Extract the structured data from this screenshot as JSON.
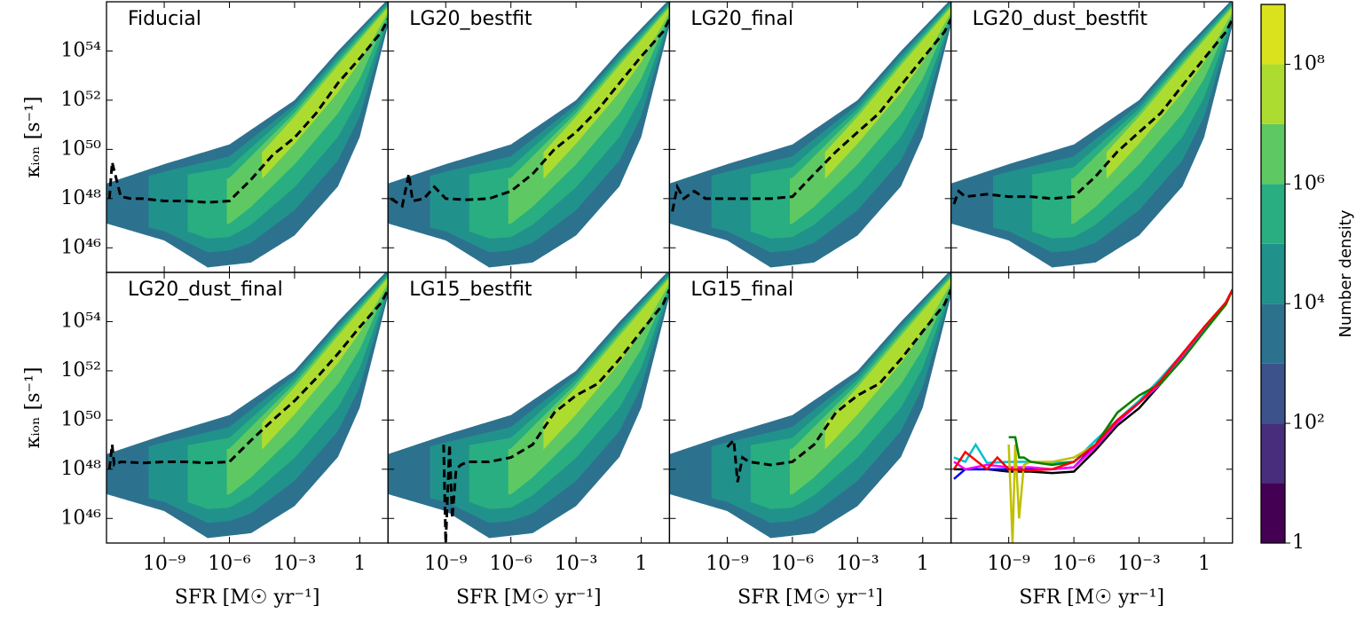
{
  "chart_data": {
    "type": "line",
    "xscale": "log",
    "yscale": "log",
    "xlim": [
      2.2e-12,
      20
    ],
    "ylim": [
      1e+45,
      1e+56
    ],
    "xticks": [
      {
        "value": 1e-09,
        "label": "10⁻⁹"
      },
      {
        "value": 1e-06,
        "label": "10⁻⁶"
      },
      {
        "value": 0.001,
        "label": "10⁻³"
      },
      1
    ],
    "yticks": [
      {
        "value": 1e+46,
        "label": "10⁴⁶"
      },
      {
        "value": 1e+48,
        "label": "10⁴⁸"
      },
      {
        "value": 1e+50,
        "label": "10⁵⁰"
      },
      {
        "value": 1e+52,
        "label": "10⁵²"
      },
      {
        "value": 1e+54,
        "label": "10⁵⁴"
      }
    ],
    "xlabel": "SFR [M☉ yr⁻¹]",
    "ylabel": "κᵢₒₙ [s⁻¹]",
    "panels": [
      {
        "title": "Fiducial",
        "density": true,
        "series": [
          {
            "color": "#000000",
            "dash": true,
            "x": [
              3e-12,
              4e-12,
              1e-11,
              3e-11,
              1e-10,
              1e-09,
              1e-08,
              1e-07,
              1e-06,
              1e-05,
              0.0001,
              0.001,
              0.01,
              0.1,
              1,
              10,
              20
            ],
            "values": [
              1e+48,
              3e+49,
              1.2e+48,
              1e+48,
              1e+48,
              8e+47,
              8e+47,
              7e+47,
              8e+47,
              6e+48,
              6e+49,
              3e+50,
              3e+51,
              5e+52,
              5e+53,
              6e+54,
              2e+55
            ]
          }
        ]
      },
      {
        "title": "LG20_bestfit",
        "density": true,
        "series": [
          {
            "color": "#000000",
            "dash": true,
            "x": [
              3e-12,
              1e-11,
              2e-11,
              3e-11,
              1e-10,
              3e-10,
              1e-09,
              1e-08,
              1e-07,
              1e-06,
              1e-05,
              0.0001,
              0.001,
              0.01,
              0.1,
              1,
              10,
              20
            ],
            "values": [
              1e+48,
              5e+47,
              1e+49,
              8e+47,
              1e+48,
              3e+48,
              1e+48,
              9e+47,
              1e+48,
              2e+48,
              1e+49,
              1e+50,
              5e+50,
              4e+51,
              5e+52,
              6e+53,
              6e+54,
              2e+55
            ]
          }
        ]
      },
      {
        "title": "LG20_final",
        "density": true,
        "series": [
          {
            "color": "#000000",
            "dash": true,
            "x": [
              3e-12,
              5e-12,
              1e-11,
              3e-11,
              1e-10,
              1e-09,
              1e-08,
              1e-07,
              1e-06,
              1e-05,
              0.0001,
              0.001,
              0.01,
              0.1,
              1,
              10,
              20
            ],
            "values": [
              3e+47,
              3e+48,
              1e+48,
              2e+48,
              1e+48,
              1e+48,
              1e+48,
              1e+48,
              1.2e+48,
              1e+49,
              8e+49,
              5e+50,
              3e+51,
              4e+52,
              5e+53,
              6e+54,
              2e+55
            ]
          }
        ]
      },
      {
        "title": "LG20_dust_bestfit",
        "density": true,
        "series": [
          {
            "color": "#000000",
            "dash": true,
            "x": [
              3e-12,
              5e-12,
              1e-11,
              1e-10,
              1e-09,
              1e-08,
              1e-07,
              1e-06,
              1e-05,
              0.0001,
              0.001,
              0.01,
              0.1,
              1,
              10,
              20
            ],
            "values": [
              6e+47,
              2e+48,
              1.2e+48,
              1.5e+48,
              1.2e+48,
              1.2e+48,
              1e+48,
              1.2e+48,
              8e+48,
              8e+49,
              5e+50,
              3e+51,
              4e+52,
              5e+53,
              6e+54,
              2e+55
            ]
          }
        ]
      },
      {
        "title": "LG20_dust_final",
        "density": true,
        "series": [
          {
            "color": "#000000",
            "dash": true,
            "x": [
              3e-12,
              4e-12,
              5e-12,
              1e-11,
              1e-10,
              1e-09,
              1e-08,
              1e-07,
              1e-06,
              1e-05,
              0.0001,
              0.001,
              0.01,
              0.1,
              1,
              10,
              20
            ],
            "values": [
              1e+48,
              1e+49,
              1.5e+48,
              2e+48,
              1.8e+48,
              2e+48,
              2e+48,
              1.8e+48,
              2e+48,
              1.5e+49,
              1e+50,
              6e+50,
              5e+51,
              5e+52,
              6e+53,
              6e+54,
              2e+55
            ]
          }
        ]
      },
      {
        "title": "LG15_bestfit",
        "density": true,
        "series": [
          {
            "color": "#000000",
            "dash": true,
            "x": [
              8e-10,
              1e-09,
              1.5e-09,
              2e-09,
              3e-09,
              5e-09,
              1e-08,
              1e-07,
              1e-06,
              1e-05,
              0.0001,
              0.001,
              0.01,
              0.1,
              1,
              10,
              20
            ],
            "values": [
              1e+49,
              1e+45,
              1e+49,
              1e+46,
              1e+48,
              1.5e+48,
              2e+48,
              2e+48,
              3e+48,
              1e+49,
              2e+50,
              1e+51,
              3e+51,
              3e+52,
              4e+53,
              5e+54,
              2e+55
            ]
          }
        ]
      },
      {
        "title": "LG15_final",
        "density": true,
        "series": [
          {
            "color": "#000000",
            "dash": true,
            "x": [
              1e-09,
              2e-09,
              3e-09,
              5e-09,
              1e-08,
              1e-07,
              1e-06,
              1e-05,
              0.0001,
              0.001,
              0.01,
              0.1,
              1,
              10,
              20
            ],
            "values": [
              8e+48,
              1.5e+49,
              3e+47,
              3e+48,
              2e+48,
              1.5e+48,
              2e+48,
              1e+49,
              2e+50,
              1e+51,
              3e+51,
              3e+52,
              4e+53,
              5e+54,
              2e+55
            ]
          }
        ]
      },
      {
        "series": [
          {
            "color": "#000000",
            "x": [
              3e-12,
              1e-11,
              1e-10,
              1e-09,
              1e-08,
              1e-07,
              1e-06,
              1e-05,
              0.0001,
              0.001,
              0.01,
              0.1,
              1,
              10,
              20
            ],
            "values": [
              1e+48,
              1e+48,
              1e+48,
              8e+47,
              8e+47,
              7e+47,
              8e+47,
              6e+48,
              6e+49,
              3e+50,
              3e+51,
              5e+52,
              5e+53,
              6e+54,
              2e+55
            ]
          },
          {
            "color": "#0000ff",
            "x": [
              3e-12,
              1e-11,
              1e-10,
              1e-09,
              1e-08,
              1e-07,
              1e-06,
              1e-05,
              0.0001,
              0.001,
              0.01,
              0.1,
              1,
              10,
              20
            ],
            "values": [
              4e+47,
              1e+48,
              1e+48,
              1e+48,
              1e+48,
              1e+48,
              1.2e+48,
              1e+49,
              8e+49,
              5e+50,
              3e+51,
              4e+52,
              5e+53,
              6e+54,
              2e+55
            ]
          },
          {
            "color": "#ff00ff",
            "x": [
              3e-12,
              1e-11,
              1e-10,
              1e-09,
              1e-08,
              1e-07,
              1e-06,
              1e-05,
              0.0001,
              0.001,
              0.01,
              0.1,
              1,
              10,
              20
            ],
            "values": [
              2e+48,
              1e+48,
              1.5e+48,
              1.2e+48,
              1.2e+48,
              1e+48,
              1.2e+48,
              8e+48,
              8e+49,
              5e+50,
              3e+51,
              4e+52,
              5e+53,
              6e+54,
              2e+55
            ]
          },
          {
            "color": "#00c0d0",
            "x": [
              3e-12,
              1e-11,
              3e-11,
              1e-10,
              1e-09,
              1e-08,
              1e-07,
              1e-06,
              1e-05,
              0.0001,
              0.001,
              0.01,
              0.1,
              1,
              10,
              20
            ],
            "values": [
              3e+48,
              2e+48,
              1e+49,
              1.8e+48,
              2e+48,
              2e+48,
              1.8e+48,
              2e+48,
              1.5e+49,
              1e+50,
              6e+50,
              5e+51,
              5e+52,
              6e+53,
              6e+54,
              2e+55
            ]
          },
          {
            "color": "#c0c000",
            "x": [
              1e-09,
              1.5e-09,
              2e-09,
              3e-09,
              5e-09,
              1e-08,
              1e-07,
              1e-06,
              1e-05,
              0.0001,
              0.001,
              0.01,
              0.1,
              1,
              10,
              20
            ],
            "values": [
              1e+49,
              1e+45,
              1e+49,
              1e+46,
              1.5e+48,
              2e+48,
              2e+48,
              3e+48,
              1e+49,
              2e+50,
              1e+51,
              3e+51,
              3e+52,
              4e+53,
              5e+54,
              2e+55
            ]
          },
          {
            "color": "#008000",
            "x": [
              1e-09,
              2e-09,
              3e-09,
              5e-09,
              1e-08,
              1e-07,
              1e-06,
              1e-05,
              0.0001,
              0.001,
              0.01,
              0.1,
              1,
              10,
              20
            ],
            "values": [
              2e+49,
              2e+49,
              3e+48,
              3e+48,
              2e+48,
              1.5e+48,
              2e+48,
              1e+49,
              2e+50,
              1e+51,
              3e+51,
              3e+52,
              4e+53,
              5e+54,
              2e+55
            ]
          },
          {
            "color": "#ff0000",
            "x": [
              3e-12,
              1e-11,
              1e-10,
              3e-10,
              1e-09,
              1e-08,
              1e-07,
              1e-06,
              1e-05,
              0.0001,
              0.001,
              0.01,
              0.1,
              1,
              10,
              20
            ],
            "values": [
              1e+48,
              5e+48,
              1e+48,
              3e+48,
              1e+48,
              9e+47,
              1e+48,
              2e+48,
              1e+49,
              1e+50,
              5e+50,
              4e+51,
              5e+52,
              6e+53,
              6e+54,
              2e+55
            ]
          }
        ]
      }
    ],
    "colorbar": {
      "label": "Number density",
      "scale": "log",
      "lim": [
        1,
        1000000000.0
      ],
      "levels": [
        1,
        10,
        100,
        1000,
        10000,
        100000,
        1000000,
        10000000,
        100000000
      ],
      "colors": [
        "#440154",
        "#472d7b",
        "#3b528b",
        "#2c728e",
        "#21918c",
        "#28ae80",
        "#5ec962",
        "#addc30",
        "#d9e21c"
      ],
      "ticks": [
        1,
        {
          "value": 100,
          "label": "10²"
        },
        {
          "value": 10000,
          "label": "10⁴"
        },
        {
          "value": 1000000,
          "label": "10⁶"
        },
        {
          "value": 100000000,
          "label": "10⁸"
        }
      ]
    }
  }
}
